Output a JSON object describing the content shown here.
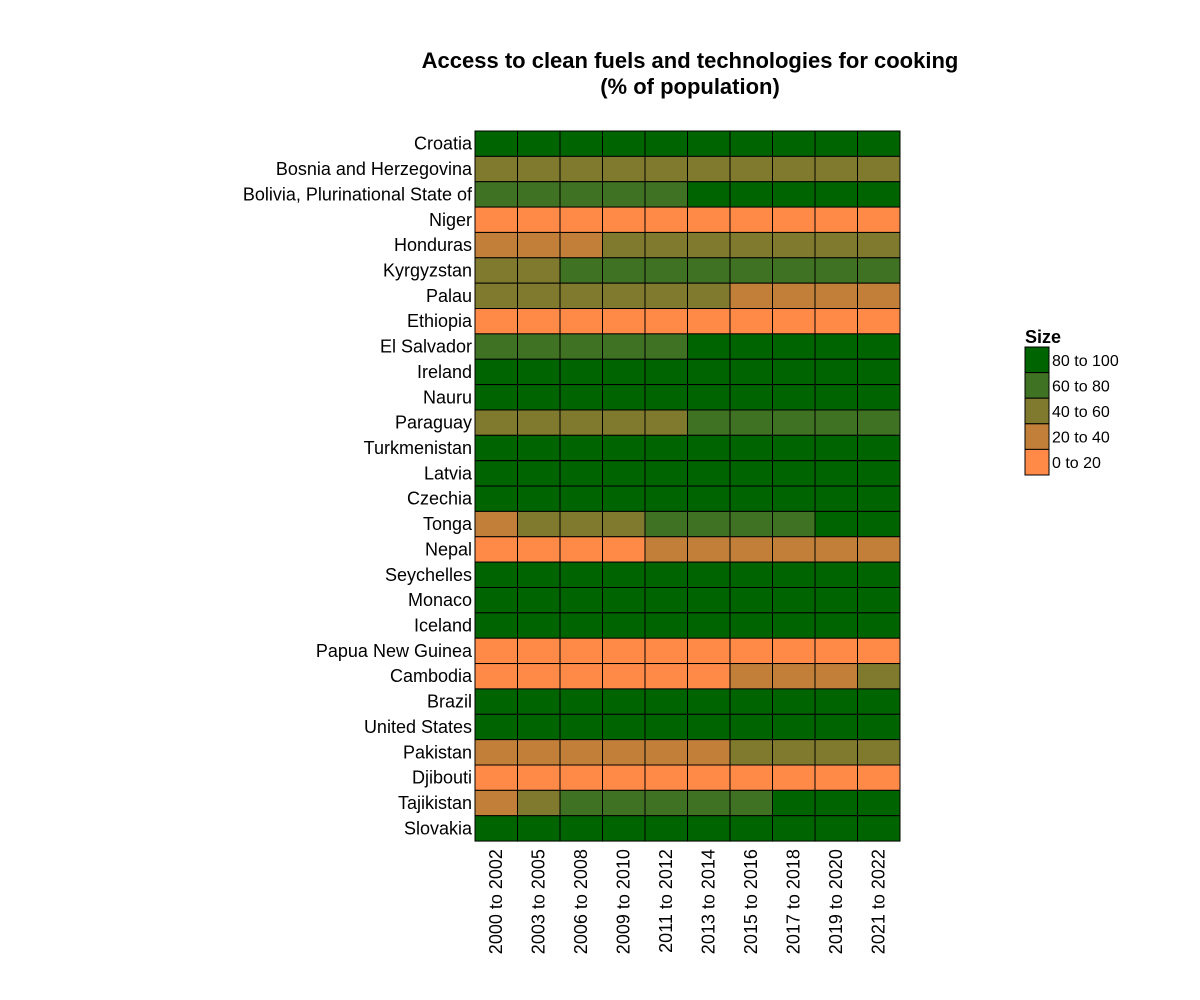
{
  "chart_data": {
    "type": "heatmap",
    "title_lines": [
      "Access to clean fuels and technologies for cooking",
      "(% of population)"
    ],
    "x_categories": [
      "2000  to  2002",
      "2003  to  2005",
      "2006  to  2008",
      "2009  to  2010",
      "2011  to  2012",
      "2013  to  2014",
      "2015  to  2016",
      "2017  to  2018",
      "2019  to  2020",
      "2021  to  2022"
    ],
    "y_categories": [
      "Croatia",
      "Bosnia and Herzegovina",
      "Bolivia, Plurinational State of",
      "Niger",
      "Honduras",
      "Kyrgyzstan",
      "Palau",
      "Ethiopia",
      "El Salvador",
      "Ireland",
      "Nauru",
      "Paraguay",
      "Turkmenistan",
      "Latvia",
      "Czechia",
      "Tonga",
      "Nepal",
      "Seychelles",
      "Monaco",
      "Iceland",
      "Papua New Guinea",
      "Cambodia",
      "Brazil",
      "United States",
      "Pakistan",
      "Djibouti",
      "Tajikistan",
      "Slovakia"
    ],
    "bins": [
      {
        "label": "80  to  100",
        "color": "#006400"
      },
      {
        "label": "60  to  80",
        "color": "#3F7222"
      },
      {
        "label": "40  to  60",
        "color": "#7F7A2E"
      },
      {
        "label": "20  to  40",
        "color": "#C27F39"
      },
      {
        "label": "0  to  20",
        "color": "#FF8A47"
      }
    ],
    "legend_title": "Size",
    "bin_index_matrix": [
      [
        0,
        0,
        0,
        0,
        0,
        0,
        0,
        0,
        0,
        0
      ],
      [
        2,
        2,
        2,
        2,
        2,
        2,
        2,
        2,
        2,
        2
      ],
      [
        1,
        1,
        1,
        1,
        1,
        0,
        0,
        0,
        0,
        0
      ],
      [
        4,
        4,
        4,
        4,
        4,
        4,
        4,
        4,
        4,
        4
      ],
      [
        3,
        3,
        3,
        2,
        2,
        2,
        2,
        2,
        2,
        2
      ],
      [
        2,
        2,
        1,
        1,
        1,
        1,
        1,
        1,
        1,
        1
      ],
      [
        2,
        2,
        2,
        2,
        2,
        2,
        3,
        3,
        3,
        3
      ],
      [
        4,
        4,
        4,
        4,
        4,
        4,
        4,
        4,
        4,
        4
      ],
      [
        1,
        1,
        1,
        1,
        1,
        0,
        0,
        0,
        0,
        0
      ],
      [
        0,
        0,
        0,
        0,
        0,
        0,
        0,
        0,
        0,
        0
      ],
      [
        0,
        0,
        0,
        0,
        0,
        0,
        0,
        0,
        0,
        0
      ],
      [
        2,
        2,
        2,
        2,
        2,
        1,
        1,
        1,
        1,
        1
      ],
      [
        0,
        0,
        0,
        0,
        0,
        0,
        0,
        0,
        0,
        0
      ],
      [
        0,
        0,
        0,
        0,
        0,
        0,
        0,
        0,
        0,
        0
      ],
      [
        0,
        0,
        0,
        0,
        0,
        0,
        0,
        0,
        0,
        0
      ],
      [
        3,
        2,
        2,
        2,
        1,
        1,
        1,
        1,
        0,
        0
      ],
      [
        4,
        4,
        4,
        4,
        3,
        3,
        3,
        3,
        3,
        3
      ],
      [
        0,
        0,
        0,
        0,
        0,
        0,
        0,
        0,
        0,
        0
      ],
      [
        0,
        0,
        0,
        0,
        0,
        0,
        0,
        0,
        0,
        0
      ],
      [
        0,
        0,
        0,
        0,
        0,
        0,
        0,
        0,
        0,
        0
      ],
      [
        4,
        4,
        4,
        4,
        4,
        4,
        4,
        4,
        4,
        4
      ],
      [
        4,
        4,
        4,
        4,
        4,
        4,
        3,
        3,
        3,
        2
      ],
      [
        0,
        0,
        0,
        0,
        0,
        0,
        0,
        0,
        0,
        0
      ],
      [
        0,
        0,
        0,
        0,
        0,
        0,
        0,
        0,
        0,
        0
      ],
      [
        3,
        3,
        3,
        3,
        3,
        3,
        2,
        2,
        2,
        2
      ],
      [
        4,
        4,
        4,
        4,
        4,
        4,
        4,
        4,
        4,
        4
      ],
      [
        3,
        2,
        1,
        1,
        1,
        1,
        1,
        0,
        0,
        0
      ],
      [
        0,
        0,
        0,
        0,
        0,
        0,
        0,
        0,
        0,
        0
      ]
    ]
  }
}
